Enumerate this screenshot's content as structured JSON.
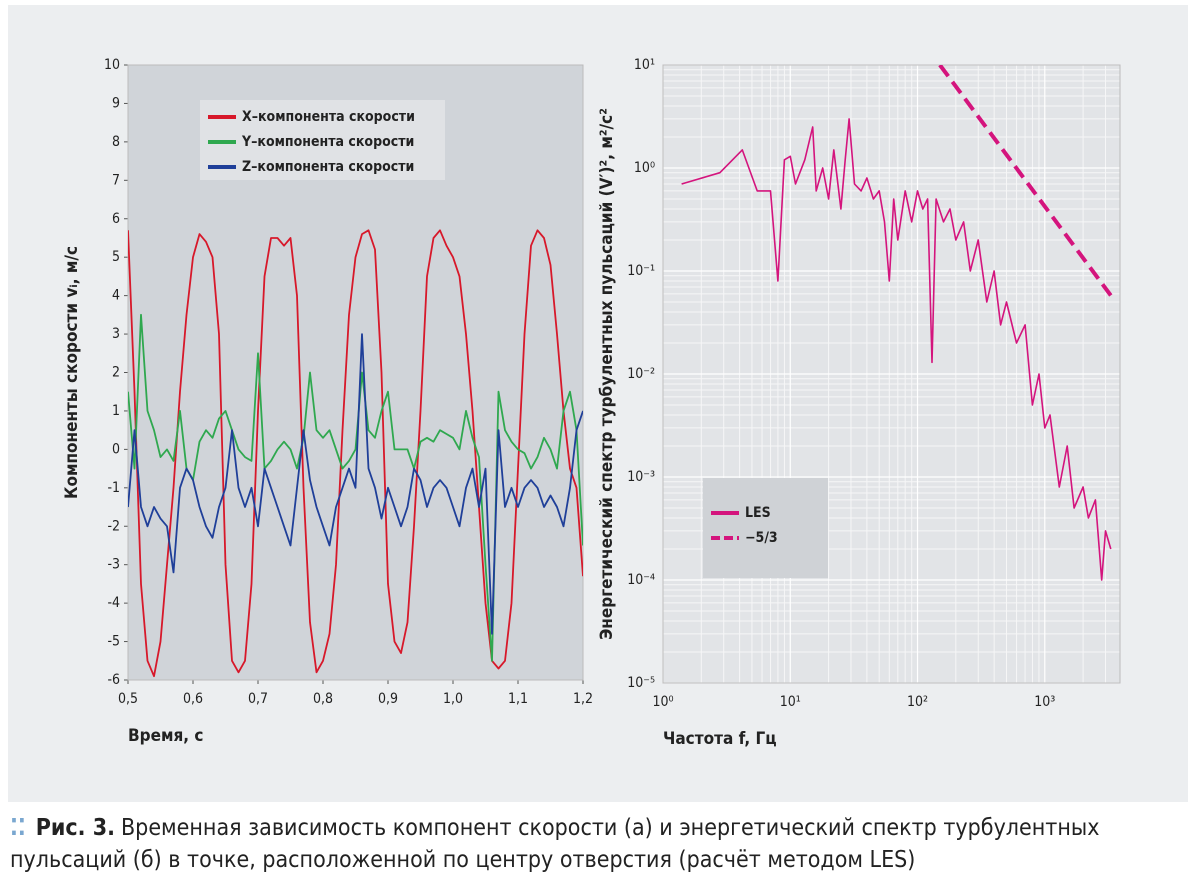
{
  "chart_data": [
    {
      "type": "line",
      "xlabel": "Время, с",
      "ylabel": "Компоненты скорости vᵢ, м/с",
      "x": [
        0.5,
        0.51,
        0.52,
        0.53,
        0.54,
        0.55,
        0.56,
        0.57,
        0.58,
        0.59,
        0.6,
        0.61,
        0.62,
        0.63,
        0.64,
        0.65,
        0.66,
        0.67,
        0.68,
        0.69,
        0.7,
        0.71,
        0.72,
        0.73,
        0.74,
        0.75,
        0.76,
        0.77,
        0.78,
        0.79,
        0.8,
        0.81,
        0.82,
        0.83,
        0.84,
        0.85,
        0.86,
        0.87,
        0.88,
        0.89,
        0.9,
        0.91,
        0.92,
        0.93,
        0.94,
        0.95,
        0.96,
        0.97,
        0.98,
        0.99,
        1.0,
        1.01,
        1.02,
        1.03,
        1.04,
        1.05,
        1.06,
        1.07,
        1.08,
        1.09,
        1.1,
        1.11,
        1.12,
        1.13,
        1.14,
        1.15,
        1.16,
        1.17,
        1.18,
        1.19,
        1.2
      ],
      "series": [
        {
          "name": "X–компонента скорости",
          "color": "#d7182a",
          "values": [
            5.7,
            1.5,
            -3.5,
            -5.5,
            -5.9,
            -5.0,
            -3.0,
            -1.0,
            1.5,
            3.5,
            5.0,
            5.6,
            5.4,
            5.0,
            3.0,
            -3.0,
            -5.5,
            -5.8,
            -5.5,
            -3.5,
            1.0,
            4.5,
            5.5,
            5.5,
            5.3,
            5.5,
            4.0,
            -1.0,
            -4.5,
            -5.8,
            -5.5,
            -4.8,
            -3.0,
            0.5,
            3.5,
            5.0,
            5.6,
            5.7,
            5.2,
            2.0,
            -3.5,
            -5.0,
            -5.3,
            -4.5,
            -2.0,
            1.0,
            4.5,
            5.5,
            5.7,
            5.3,
            5.0,
            4.5,
            3.0,
            1.0,
            -1.5,
            -4.0,
            -5.5,
            -5.7,
            -5.5,
            -4.0,
            -0.5,
            3.0,
            5.3,
            5.7,
            5.5,
            4.8,
            3.0,
            1.0,
            -0.5,
            -1.0,
            -3.3
          ]
        },
        {
          "name": "Y–компонента скорости",
          "color": "#2fa84f",
          "values": [
            1.5,
            -0.5,
            3.5,
            1.0,
            0.5,
            -0.2,
            0,
            -0.3,
            1.0,
            -0.5,
            -0.8,
            0.2,
            0.5,
            0.3,
            0.8,
            1.0,
            0.5,
            0,
            -0.2,
            -0.3,
            2.5,
            -0.5,
            -0.3,
            0,
            0.2,
            0,
            -0.5,
            0.3,
            2.0,
            0.5,
            0.3,
            0.5,
            0,
            -0.5,
            -0.3,
            0,
            2.0,
            0.5,
            0.3,
            1.0,
            1.5,
            0,
            0,
            0,
            -0.5,
            0.2,
            0.3,
            0.2,
            0.5,
            0.4,
            0.3,
            0,
            1.0,
            0.3,
            -0.2,
            -3.0,
            -5.5,
            1.5,
            0.5,
            0.2,
            0,
            -0.1,
            -0.5,
            -0.2,
            0.3,
            0,
            -0.5,
            1.0,
            1.5,
            0.5,
            -2.5
          ]
        },
        {
          "name": "Z–компонента скорости",
          "color": "#1f3f99",
          "values": [
            -1.5,
            0.5,
            -1.5,
            -2.0,
            -1.5,
            -1.8,
            -2.0,
            -3.2,
            -1.0,
            -0.5,
            -0.8,
            -1.5,
            -2.0,
            -2.3,
            -1.5,
            -1.0,
            0.5,
            -1.0,
            -1.5,
            -1.0,
            -2.0,
            -0.5,
            -1.0,
            -1.5,
            -2.0,
            -2.5,
            -1.0,
            0.5,
            -0.8,
            -1.5,
            -2.0,
            -2.5,
            -1.5,
            -1.0,
            -0.5,
            -1.0,
            3.0,
            -0.5,
            -1.0,
            -1.8,
            -1.0,
            -1.5,
            -2.0,
            -1.5,
            -0.5,
            -0.8,
            -1.5,
            -1.0,
            -0.8,
            -1.0,
            -1.5,
            -2.0,
            -1.0,
            -0.5,
            -1.5,
            -0.5,
            -4.8,
            0.5,
            -1.5,
            -1.0,
            -1.5,
            -1.0,
            -0.8,
            -1.0,
            -1.5,
            -1.2,
            -1.5,
            -2.0,
            -1.0,
            0.5,
            1.0
          ]
        }
      ],
      "xlim": [
        0.5,
        1.2
      ],
      "xticks": [
        {
          "value": 0.5,
          "label": "0,5"
        },
        {
          "value": 0.6,
          "label": "0,6"
        },
        {
          "value": 0.7,
          "label": "0,7"
        },
        {
          "value": 0.8,
          "label": "0,8"
        },
        {
          "value": 0.9,
          "label": "0,9"
        },
        {
          "value": 1.0,
          "label": "1,0"
        },
        {
          "value": 1.1,
          "label": "1,1"
        },
        {
          "value": 1.2,
          "label": "1,2"
        }
      ],
      "ylim": [
        -6,
        10
      ],
      "yticks": [
        -6,
        -5,
        -4,
        -3,
        -2,
        -1,
        0,
        1,
        2,
        3,
        4,
        5,
        6,
        7,
        8,
        9,
        10
      ],
      "grid": false,
      "legend": "upper center"
    },
    {
      "type": "line",
      "xlabel": "Частота f, Гц",
      "ylabel": "Энергетический спектр турбулентных пульсаций (V′)², м²/с²",
      "xscale": "log",
      "yscale": "log",
      "series": [
        {
          "name": "LES",
          "color": "#d4147d",
          "style": "solid",
          "x": [
            1.4,
            2.8,
            4.2,
            5.5,
            7,
            8,
            9,
            10,
            11,
            13,
            15,
            16,
            18,
            20,
            22,
            25,
            27,
            29,
            32,
            36,
            40,
            45,
            50,
            55,
            60,
            65,
            70,
            80,
            90,
            100,
            110,
            120,
            130,
            140,
            160,
            180,
            200,
            230,
            260,
            300,
            350,
            400,
            450,
            500,
            600,
            700,
            800,
            900,
            1000,
            1100,
            1300,
            1500,
            1700,
            2000,
            2200,
            2500,
            2800,
            3000,
            3300
          ],
          "values": [
            0.7,
            0.9,
            1.5,
            0.6,
            0.6,
            0.08,
            1.2,
            1.3,
            0.7,
            1.2,
            2.5,
            0.6,
            1.0,
            0.5,
            1.5,
            0.4,
            1.2,
            3.0,
            0.7,
            0.6,
            0.8,
            0.5,
            0.6,
            0.3,
            0.08,
            0.5,
            0.2,
            0.6,
            0.3,
            0.6,
            0.4,
            0.5,
            0.013,
            0.5,
            0.3,
            0.4,
            0.2,
            0.3,
            0.1,
            0.2,
            0.05,
            0.1,
            0.03,
            0.05,
            0.02,
            0.03,
            0.005,
            0.01,
            0.003,
            0.004,
            0.0008,
            0.002,
            0.0005,
            0.0008,
            0.0004,
            0.0006,
            0.0001,
            0.0003,
            0.0002
          ]
        },
        {
          "name": "−5/3",
          "color": "#d4147d",
          "style": "dashed",
          "x": [
            150,
            3300
          ],
          "values": [
            10,
            0.058
          ]
        }
      ],
      "xlim": [
        1,
        3900
      ],
      "xticks": [
        {
          "value": 1,
          "label": "10⁰"
        },
        {
          "value": 10,
          "label": "10¹"
        },
        {
          "value": 100,
          "label": "10²"
        },
        {
          "value": 1000,
          "label": "10³"
        }
      ],
      "ylim": [
        1e-05,
        10
      ],
      "yticks": [
        {
          "value": 1e-05,
          "label": "10⁻⁵"
        },
        {
          "value": 0.0001,
          "label": "10⁻⁴"
        },
        {
          "value": 0.001,
          "label": "10⁻³"
        },
        {
          "value": 0.01,
          "label": "10⁻²"
        },
        {
          "value": 0.1,
          "label": "10⁻¹"
        },
        {
          "value": 1,
          "label": "10⁰"
        },
        {
          "value": 10,
          "label": "10¹"
        }
      ],
      "grid": true,
      "minor_grid": true,
      "legend": "lower left"
    }
  ],
  "caption": {
    "label": "Рис. 3.",
    "text": "Временная зависимость компонент скорости (а) и энергетический спектр турбулентных пульсаций (б) в точке, расположенной по центру отверстия (расчёт методом LES)"
  }
}
